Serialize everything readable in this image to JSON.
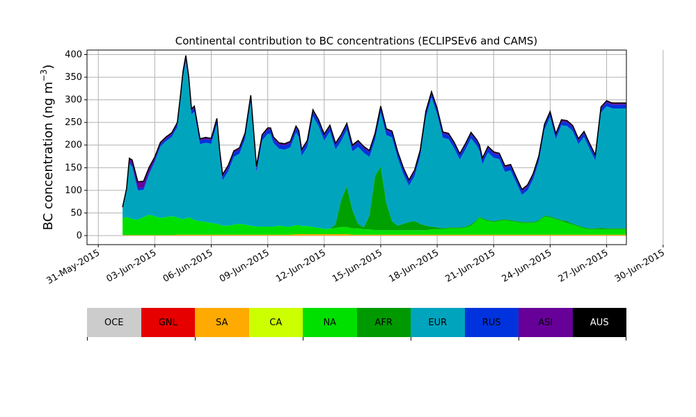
{
  "chart_data": {
    "type": "area",
    "title": "Continental contribution to BC concentrations (ECLIPSEv6 and CAMS)",
    "ylabel": "BC concentration (ng m$^{-3}$)",
    "ylabel_parts": {
      "main": "BC concentration (ng m",
      "sup": "−3",
      "close": ")"
    },
    "xlabel": "",
    "ylim": [
      -20,
      410
    ],
    "xlim": [
      -1.2,
      8.35
    ],
    "yticks": [
      0,
      50,
      100,
      150,
      200,
      250,
      300,
      350,
      400
    ],
    "xticks": [
      "31-May-2015",
      "03-Jun-2015",
      "06-Jun-2015",
      "09-Jun-2015",
      "12-Jun-2015",
      "15-Jun-2015",
      "18-Jun-2015",
      "21-Jun-2015",
      "24-Jun-2015",
      "27-Jun-2015",
      "30-Jun-2015"
    ],
    "x_units": "days since 03-Jun-2015 in tick spacing of 3 days",
    "grid": true,
    "x": [
      -0.57,
      -0.5,
      -0.45,
      -0.4,
      -0.3,
      -0.2,
      -0.1,
      0,
      0.1,
      0.2,
      0.3,
      0.4,
      0.45,
      0.5,
      0.55,
      0.6,
      0.65,
      0.7,
      0.8,
      0.9,
      1,
      1.1,
      1.15,
      1.2,
      1.3,
      1.4,
      1.5,
      1.6,
      1.7,
      1.8,
      1.9,
      2,
      2.05,
      2.1,
      2.2,
      2.3,
      2.4,
      2.5,
      2.55,
      2.6,
      2.7,
      2.8,
      2.9,
      3,
      3.1,
      3.2,
      3.3,
      3.4,
      3.5,
      3.6,
      3.7,
      3.8,
      3.9,
      4,
      4.1,
      4.2,
      4.3,
      4.4,
      4.5,
      4.6,
      4.7,
      4.8,
      4.9,
      5,
      5.1,
      5.2,
      5.3,
      5.4,
      5.5,
      5.6,
      5.7,
      5.75,
      5.8,
      5.9,
      6,
      6.1,
      6.2,
      6.3,
      6.4,
      6.5,
      6.6,
      6.7,
      6.8,
      6.9,
      7,
      7.1,
      7.2,
      7.3,
      7.4,
      7.5,
      7.6,
      7.7,
      7.8,
      7.9,
      8,
      8.1,
      8.2,
      8.3,
      8.35
    ],
    "series": [
      {
        "name": "SA",
        "color": "#ffa500",
        "values": [
          1,
          1,
          1,
          1,
          1,
          1,
          1,
          1,
          1,
          1,
          1,
          2,
          2,
          2,
          2,
          2,
          2,
          2,
          2,
          2,
          2,
          2,
          2,
          2,
          2,
          2,
          2,
          2,
          2,
          2,
          2,
          2,
          2,
          2,
          2,
          2,
          2,
          3,
          3,
          3,
          3,
          3,
          3,
          3,
          3,
          3,
          3,
          3,
          2,
          2,
          2,
          2,
          2,
          2,
          2,
          2,
          2,
          2,
          2,
          2,
          2,
          2,
          2,
          2,
          2,
          2,
          2,
          2,
          2,
          2,
          2,
          2,
          2,
          2,
          2,
          2,
          2,
          2,
          2,
          2,
          2,
          2,
          2,
          2,
          2,
          2,
          2,
          2,
          2,
          2,
          2,
          2,
          2,
          2,
          2,
          2,
          2,
          2,
          2
        ]
      },
      {
        "name": "NA",
        "color": "#00e000",
        "values": [
          38,
          40,
          38,
          36,
          34,
          40,
          45,
          42,
          38,
          40,
          42,
          38,
          36,
          34,
          36,
          38,
          36,
          32,
          30,
          28,
          26,
          24,
          22,
          20,
          20,
          22,
          24,
          22,
          20,
          18,
          18,
          18,
          18,
          18,
          20,
          18,
          18,
          20,
          20,
          18,
          18,
          16,
          14,
          12,
          12,
          14,
          16,
          16,
          14,
          14,
          12,
          12,
          10,
          10,
          10,
          10,
          10,
          10,
          10,
          10,
          10,
          10,
          12,
          12,
          12,
          14,
          14,
          14,
          16,
          20,
          30,
          38,
          34,
          30,
          28,
          30,
          32,
          30,
          28,
          26,
          26,
          26,
          30,
          40,
          38,
          34,
          30,
          26,
          22,
          18,
          14,
          12,
          12,
          12,
          12,
          12,
          12,
          12,
          12
        ]
      },
      {
        "name": "AFR",
        "color": "#00a000",
        "values": [
          0,
          0,
          0,
          0,
          0,
          0,
          0,
          0,
          0,
          0,
          0,
          0,
          0,
          0,
          0,
          0,
          0,
          0,
          0,
          0,
          0,
          0,
          0,
          0,
          0,
          0,
          0,
          0,
          0,
          0,
          0,
          0,
          0,
          0,
          0,
          0,
          0,
          0,
          0,
          0,
          0,
          0,
          0,
          0,
          0,
          8,
          60,
          90,
          40,
          10,
          4,
          30,
          120,
          140,
          60,
          20,
          10,
          14,
          18,
          20,
          14,
          10,
          6,
          4,
          2,
          2,
          2,
          2,
          2,
          3,
          2,
          2,
          2,
          2,
          2,
          2,
          2,
          2,
          2,
          2,
          2,
          2,
          2,
          2,
          2,
          2,
          2,
          4,
          2,
          2,
          2,
          2,
          2,
          3,
          2,
          2,
          2,
          2,
          2
        ]
      },
      {
        "name": "EUR",
        "color": "#00a5bd",
        "values": [
          20,
          55,
          120,
          115,
          65,
          60,
          90,
          120,
          158,
          168,
          175,
          200,
          255,
          315,
          348,
          300,
          230,
          240,
          170,
          175,
          175,
          220,
          150,
          100,
          120,
          150,
          155,
          190,
          275,
          120,
          190,
          205,
          205,
          185,
          170,
          170,
          175,
          205,
          195,
          155,
          175,
          245,
          225,
          195,
          215,
          165,
          130,
          125,
          130,
          170,
          165,
          130,
          80,
          120,
          150,
          185,
          150,
          110,
          80,
          100,
          150,
          240,
          285,
          250,
          200,
          195,
          175,
          150,
          170,
          190,
          165,
          145,
          120,
          150,
          140,
          135,
          105,
          110,
          85,
          60,
          70,
          95,
          130,
          190,
          220,
          175,
          210,
          210,
          205,
          180,
          200,
          175,
          150,
          255,
          270,
          265,
          265,
          265,
          265
        ]
      },
      {
        "name": "RUS",
        "color": "#0033dd",
        "values": [
          2,
          3,
          4,
          5,
          5,
          5,
          5,
          5,
          5,
          5,
          5,
          6,
          7,
          8,
          8,
          8,
          8,
          8,
          8,
          8,
          8,
          9,
          9,
          9,
          9,
          9,
          9,
          9,
          9,
          9,
          9,
          9,
          9,
          9,
          9,
          9,
          9,
          10,
          10,
          10,
          10,
          10,
          10,
          10,
          10,
          10,
          10,
          10,
          10,
          10,
          10,
          10,
          10,
          10,
          10,
          10,
          10,
          10,
          9,
          9,
          9,
          9,
          9,
          9,
          9,
          9,
          9,
          9,
          9,
          9,
          9,
          9,
          9,
          9,
          9,
          9,
          9,
          9,
          8,
          8,
          8,
          8,
          8,
          8,
          8,
          8,
          8,
          8,
          8,
          8,
          8,
          8,
          8,
          8,
          8,
          8,
          8,
          8,
          8
        ]
      },
      {
        "name": "ASI",
        "color": "#660099",
        "values": [
          2,
          4,
          8,
          10,
          14,
          14,
          10,
          6,
          4,
          4,
          4,
          4,
          4,
          4,
          4,
          4,
          4,
          4,
          4,
          4,
          4,
          4,
          4,
          4,
          4,
          4,
          4,
          4,
          4,
          4,
          4,
          4,
          4,
          4,
          4,
          4,
          4,
          4,
          4,
          4,
          4,
          4,
          4,
          4,
          4,
          4,
          4,
          4,
          4,
          4,
          4,
          4,
          4,
          4,
          4,
          4,
          4,
          4,
          4,
          4,
          4,
          4,
          4,
          4,
          4,
          4,
          4,
          4,
          4,
          4,
          4,
          4,
          4,
          4,
          4,
          4,
          4,
          4,
          4,
          4,
          4,
          4,
          4,
          4,
          4,
          4,
          4,
          4,
          4,
          4,
          4,
          4,
          4,
          4,
          4,
          4,
          4,
          4,
          4
        ]
      }
    ],
    "total_color": "#000000",
    "legend_colorbar": [
      {
        "label": "OCE",
        "color": "#cccccc"
      },
      {
        "label": "GNL",
        "color": "#e60000"
      },
      {
        "label": "SA",
        "color": "#ffaa00"
      },
      {
        "label": "CA",
        "color": "#ccff00"
      },
      {
        "label": "NA",
        "color": "#00e000"
      },
      {
        "label": "AFR",
        "color": "#009900"
      },
      {
        "label": "EUR",
        "color": "#00a5bd"
      },
      {
        "label": "RUS",
        "color": "#0033dd"
      },
      {
        "label": "ASI",
        "color": "#660099"
      },
      {
        "label": "AUS",
        "color": "#000000"
      }
    ]
  }
}
